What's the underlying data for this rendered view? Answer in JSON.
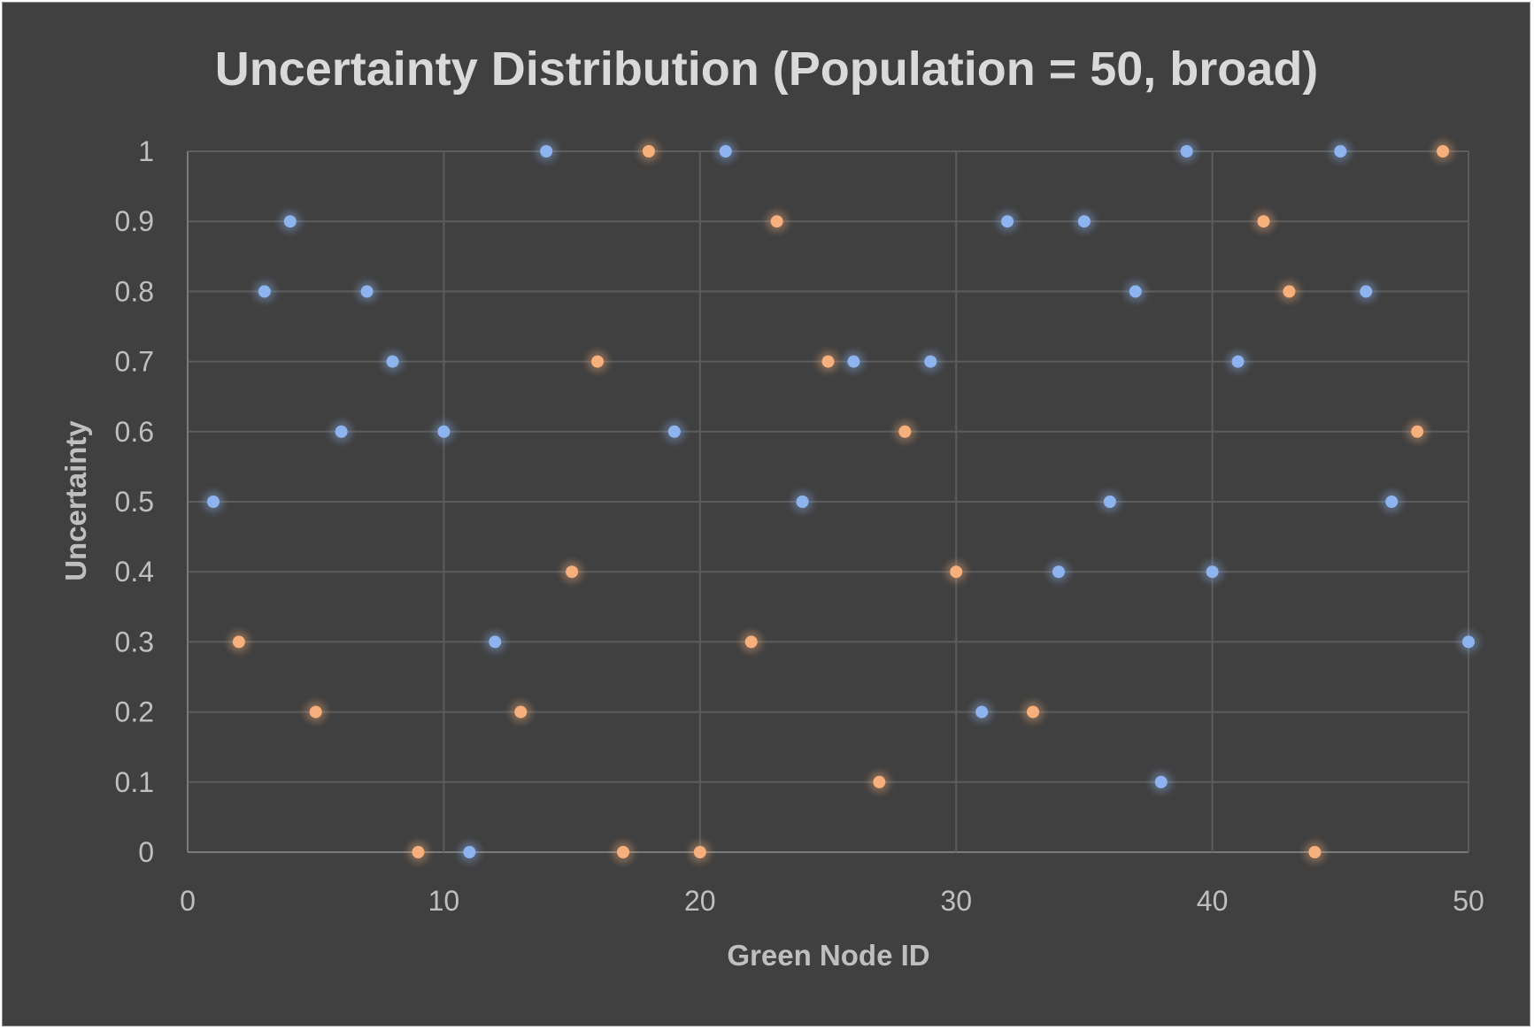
{
  "chart_data": {
    "type": "scatter",
    "title": "Uncertainty Distribution (Population = 50, broad)",
    "xlabel": "Green Node ID",
    "ylabel": "Uncertainty",
    "xlim": [
      0,
      50
    ],
    "ylim": [
      0,
      1
    ],
    "x_ticks": [
      "0",
      "10",
      "20",
      "30",
      "40",
      "50"
    ],
    "y_ticks": [
      "0",
      "0.1",
      "0.2",
      "0.3",
      "0.4",
      "0.5",
      "0.6",
      "0.7",
      "0.8",
      "0.9",
      "1"
    ],
    "grid": true,
    "legend": false,
    "colors": {
      "series_blue": "#8eb4f0",
      "series_orange": "#f7b07c",
      "background": "#404040"
    },
    "series": [
      {
        "color": "#8eb4f0",
        "points": [
          [
            1,
            0.5
          ],
          [
            3,
            0.8
          ],
          [
            4,
            0.9
          ],
          [
            6,
            0.6
          ],
          [
            7,
            0.8
          ],
          [
            8,
            0.7
          ],
          [
            10,
            0.6
          ],
          [
            11,
            0.0
          ],
          [
            12,
            0.3
          ],
          [
            14,
            1.0
          ],
          [
            19,
            0.6
          ],
          [
            21,
            1.0
          ],
          [
            24,
            0.5
          ],
          [
            26,
            0.7
          ],
          [
            29,
            0.7
          ],
          [
            31,
            0.2
          ],
          [
            32,
            0.9
          ],
          [
            34,
            0.4
          ],
          [
            35,
            0.9
          ],
          [
            36,
            0.5
          ],
          [
            37,
            0.8
          ],
          [
            38,
            0.1
          ],
          [
            39,
            1.0
          ],
          [
            40,
            0.4
          ],
          [
            41,
            0.7
          ],
          [
            45,
            1.0
          ],
          [
            46,
            0.8
          ],
          [
            47,
            0.5
          ],
          [
            50,
            0.3
          ]
        ]
      },
      {
        "color": "#f7b07c",
        "points": [
          [
            2,
            0.3
          ],
          [
            5,
            0.2
          ],
          [
            9,
            0.0
          ],
          [
            13,
            0.2
          ],
          [
            15,
            0.4
          ],
          [
            16,
            0.7
          ],
          [
            17,
            0.0
          ],
          [
            18,
            1.0
          ],
          [
            20,
            0.0
          ],
          [
            22,
            0.3
          ],
          [
            23,
            0.9
          ],
          [
            25,
            0.7
          ],
          [
            27,
            0.1
          ],
          [
            28,
            0.6
          ],
          [
            30,
            0.4
          ],
          [
            33,
            0.2
          ],
          [
            42,
            0.9
          ],
          [
            43,
            0.8
          ],
          [
            44,
            0.0
          ],
          [
            48,
            0.6
          ],
          [
            49,
            1.0
          ]
        ]
      }
    ]
  }
}
